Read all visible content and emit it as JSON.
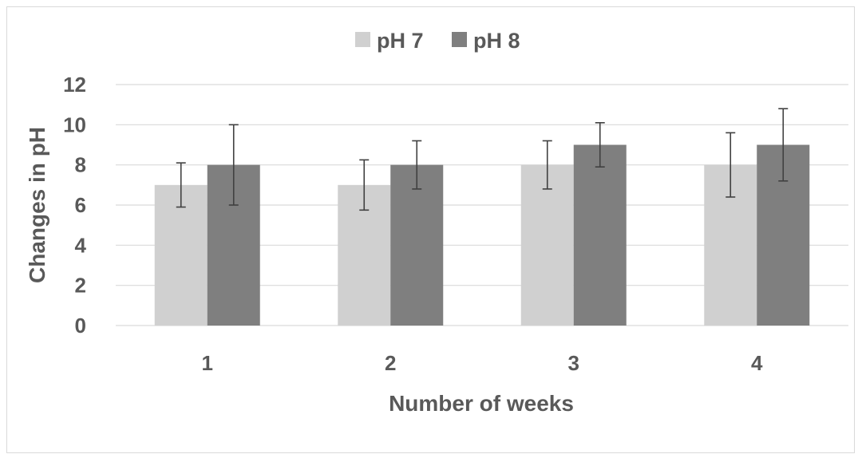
{
  "chart_data": {
    "type": "bar",
    "categories": [
      "1",
      "2",
      "3",
      "4"
    ],
    "series": [
      {
        "name": "pH 7",
        "values": [
          7,
          7,
          8,
          8
        ],
        "error_low": [
          5.9,
          5.75,
          6.8,
          6.4
        ],
        "error_high": [
          8.1,
          8.25,
          9.2,
          9.6
        ],
        "color": "#d0d0d0"
      },
      {
        "name": "pH 8",
        "values": [
          8,
          8,
          9,
          9
        ],
        "error_low": [
          6.0,
          6.8,
          7.9,
          7.2
        ],
        "error_high": [
          10.0,
          9.2,
          10.1,
          10.8
        ],
        "color": "#7f7f7f"
      }
    ],
    "xlabel": "Number of weeks",
    "ylabel": "Changes in pH",
    "ylim": [
      0,
      12
    ],
    "yticks": [
      "0",
      "2",
      "4",
      "6",
      "8",
      "10",
      "12"
    ],
    "grid": true,
    "legend_position": "top-center"
  },
  "colors": {
    "grid": "#d9d9d9",
    "text": "#595959",
    "error_bar": "#404040"
  }
}
